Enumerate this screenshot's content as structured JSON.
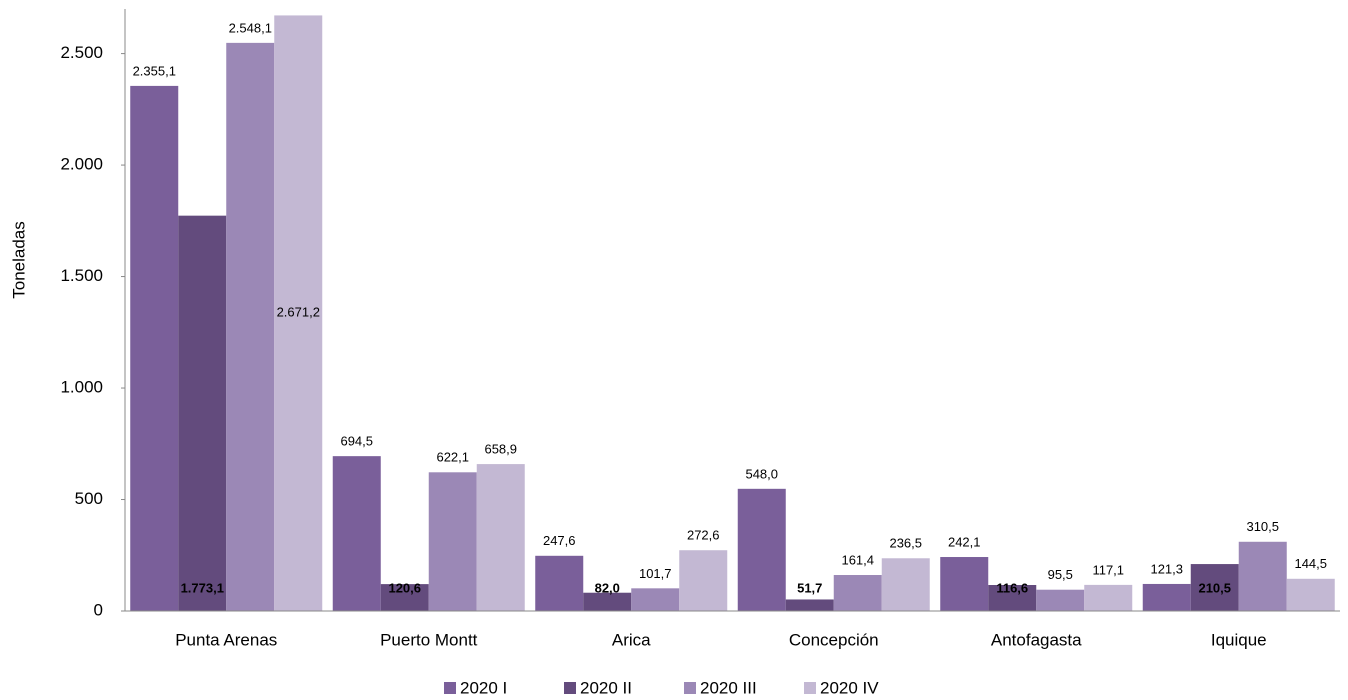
{
  "chart_data": {
    "type": "bar",
    "y_label": "Toneladas",
    "categories": [
      "Punta Arenas",
      "Puerto Montt",
      "Arica",
      "Concepción",
      "Antofagasta",
      "Iquique"
    ],
    "series": [
      {
        "name": "2020 I",
        "color": "#7a5f9a",
        "values": [
          2355.1,
          694.5,
          247.6,
          548.0,
          242.1,
          121.3
        ],
        "value_labels": [
          "2.355,1",
          "694,5",
          "247,6",
          "548,0",
          "242,1",
          "121,3"
        ]
      },
      {
        "name": "2020 II",
        "color": "#634b7d",
        "values": [
          1773.1,
          120.6,
          82.0,
          51.7,
          116.6,
          210.5
        ],
        "value_labels": [
          "1.773,1",
          "120,6",
          "82,0",
          "51,7",
          "116,6",
          "210,5"
        ]
      },
      {
        "name": "2020 III",
        "color": "#9b88b6",
        "values": [
          2548.1,
          622.1,
          101.7,
          161.4,
          95.5,
          310.5
        ],
        "value_labels": [
          "2.548,1",
          "622,1",
          "101,7",
          "161,4",
          "95,5",
          "310,5"
        ]
      },
      {
        "name": "2020 IV",
        "color": "#c3b8d3",
        "values": [
          2671.2,
          658.9,
          272.6,
          236.5,
          117.1,
          144.5
        ],
        "value_labels": [
          "2.671,2",
          "658,9",
          "272,6",
          "236,5",
          "117,1",
          "144,5"
        ]
      }
    ],
    "ylim": [
      0,
      2700
    ],
    "yticks": [
      0,
      500,
      {
        "value": 1000,
        "label": "1.000"
      },
      {
        "value": 1500,
        "label": "1.500"
      },
      {
        "value": 2000,
        "label": "2.000"
      },
      {
        "value": 2500,
        "label": "2.500"
      }
    ],
    "grid": false,
    "legend": "bottom"
  }
}
